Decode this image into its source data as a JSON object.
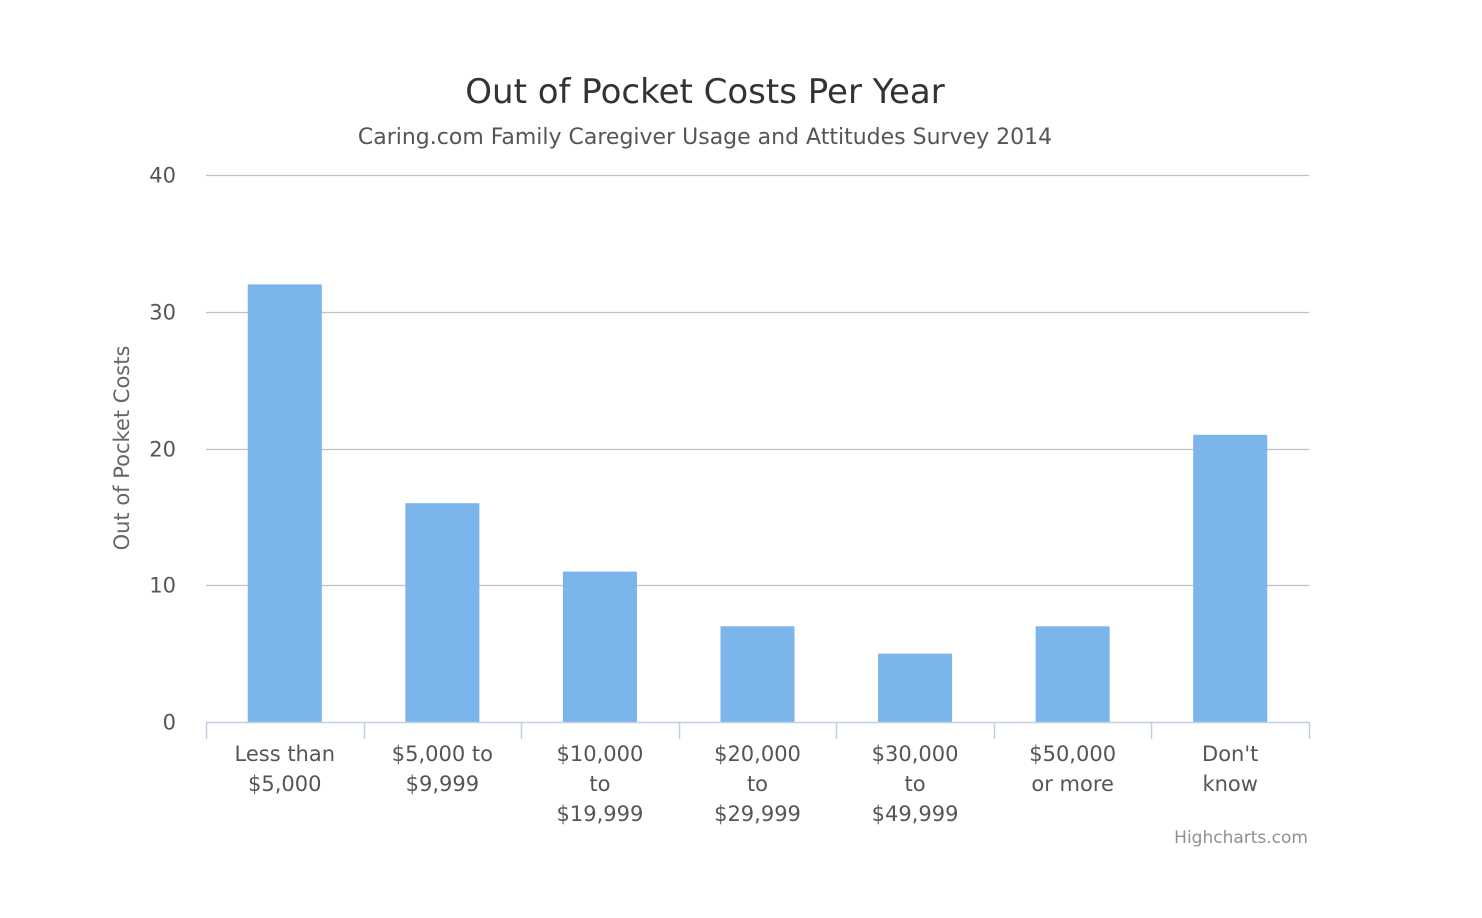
{
  "chart_data": {
    "type": "bar",
    "title": "Out of Pocket Costs Per Year",
    "subtitle": "Caring.com Family Caregiver Usage and Attitudes Survey 2014",
    "ylabel": "Out of Pocket Costs",
    "xlabel": "",
    "ylim": [
      0,
      40
    ],
    "yticks": [
      "0",
      "10",
      "20",
      "30",
      "40"
    ],
    "ytick_values": [
      0,
      10,
      20,
      30,
      40
    ],
    "grid": true,
    "legend": "none",
    "categories": [
      [
        "Less than",
        "$5,000"
      ],
      [
        "$5,000 to",
        "$9,999"
      ],
      [
        "$10,000",
        "to",
        "$19,999"
      ],
      [
        "$20,000",
        "to",
        "$29,999"
      ],
      [
        "$30,000",
        "to",
        "$49,999"
      ],
      [
        "$50,000",
        "or more"
      ],
      [
        "Don't",
        "know"
      ]
    ],
    "series": [
      {
        "values": [
          32,
          16,
          11,
          7,
          5,
          7,
          21
        ],
        "color": "#7cb5ec"
      }
    ]
  },
  "credits": "Highcharts.com",
  "colors": {
    "bar": "#7cb5ec",
    "grid": "#c0c0c0",
    "axis": "#c0d0e0"
  }
}
